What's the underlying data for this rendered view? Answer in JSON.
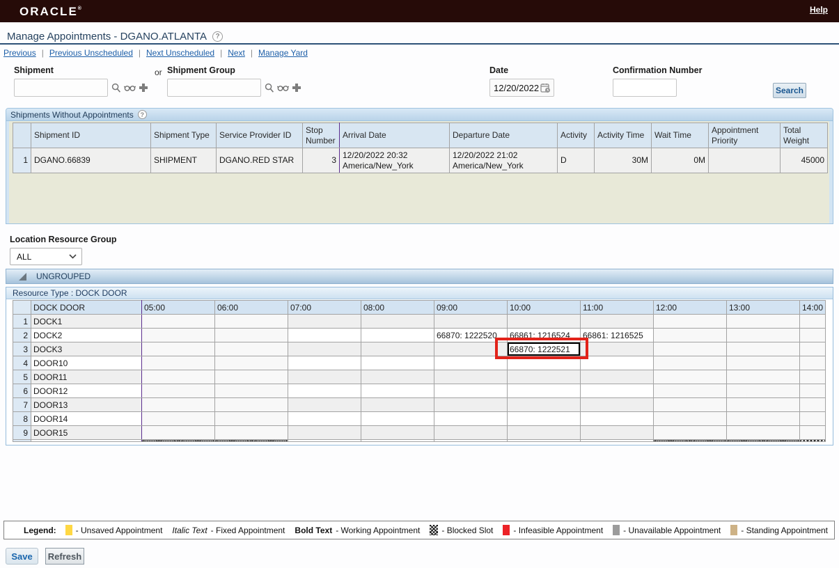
{
  "header": {
    "brand": "ORACLE",
    "brand_mark": "®",
    "help_link": "Help"
  },
  "page": {
    "title": "Manage Appointments - DGANO.ATLANTA"
  },
  "icons": {
    "title_help": "question-circle",
    "lookup": "magnifier",
    "saved_query": "glasses",
    "new_item": "plus",
    "date_picker": "calendar-clock",
    "group_collapse": "triangle",
    "dropdown": "chevron-down"
  },
  "nav": {
    "links": [
      "Previous",
      "Previous Unscheduled",
      "Next Unscheduled",
      "Next",
      "Manage Yard"
    ]
  },
  "search_form": {
    "shipment_label": "Shipment",
    "or_label": "or",
    "shipment_group_label": "Shipment Group",
    "shipment_value": "",
    "shipment_group_value": "",
    "date_label": "Date",
    "date_value": "12/20/2022",
    "confirmation_label": "Confirmation Number",
    "confirmation_value": "",
    "search_button": "Search"
  },
  "shipments_panel": {
    "title": "Shipments Without Appointments",
    "columns": [
      "Shipment ID",
      "Shipment Type",
      "Service Provider ID",
      "Stop Number",
      "Arrival Date",
      "Departure Date",
      "Activity",
      "Activity Time",
      "Wait Time",
      "Appointment Priority",
      "Total Weight"
    ],
    "rows": [
      {
        "row_number": "1",
        "shipment_id": "DGANO.66839",
        "shipment_type": "SHIPMENT",
        "service_provider_id": "DGANO.RED STAR",
        "stop_number": "3",
        "arrival_date": "12/20/2022 20:32\nAmerica/New_York",
        "departure_date": "12/20/2022 21:02\nAmerica/New_York",
        "activity": "D",
        "activity_time": "30M",
        "wait_time": "0M",
        "appointment_priority": "",
        "total_weight": "45000"
      }
    ]
  },
  "resource_group": {
    "label": "Location Resource Group",
    "selected": "ALL",
    "group_header": "UNGROUPED",
    "resource_type_header": "Resource Type : DOCK DOOR"
  },
  "schedule": {
    "door_column_header": "DOCK DOOR",
    "times": [
      "05:00",
      "06:00",
      "07:00",
      "08:00",
      "09:00",
      "10:00",
      "11:00",
      "12:00",
      "13:00",
      "14:00"
    ],
    "blocked_times": [
      "05:00",
      "06:00",
      "12:00",
      "13:00",
      "14:00"
    ],
    "doors": [
      "DOCK1",
      "DOCK2",
      "DOCK3",
      "DOOR10",
      "DOOR11",
      "DOOR12",
      "DOOR13",
      "DOOR14",
      "DOOR15"
    ],
    "appointments": [
      {
        "door": "DOCK2",
        "time": "09:00",
        "label": "66870: 1222520",
        "selected": false,
        "highlighted": false
      },
      {
        "door": "DOCK2",
        "time": "10:00",
        "label": "66861: 1216524",
        "selected": false,
        "highlighted": false
      },
      {
        "door": "DOCK2",
        "time": "11:00",
        "label": "66861: 1216525",
        "selected": false,
        "highlighted": false
      },
      {
        "door": "DOCK3",
        "time": "10:00",
        "label": "66870: 1222521",
        "selected": true,
        "highlighted": true
      }
    ]
  },
  "legend": {
    "title": "Legend:",
    "items": [
      {
        "swatch": "yellow",
        "text": "- Unsaved Appointment"
      },
      {
        "sample": "Italic Text",
        "sample_style": "italic",
        "text": "- Fixed Appointment"
      },
      {
        "sample": "Bold Text",
        "sample_style": "bold",
        "text": "- Working Appointment"
      },
      {
        "swatch": "blocked",
        "text": "- Blocked Slot"
      },
      {
        "swatch": "red",
        "text": "- Infeasible Appointment"
      },
      {
        "swatch": "gray",
        "text": "- Unavailable Appointment"
      },
      {
        "swatch": "tan",
        "text": "- Standing Appointment"
      }
    ]
  },
  "footer": {
    "save_button": "Save",
    "refresh_button": "Refresh"
  },
  "colors": {
    "topbar": "#260b08",
    "link_blue": "#1d5fa8",
    "panel_header_blue": "#b9d3e9",
    "empty_table_beige": "#e8e9d8",
    "blocked_slot_border": "#5b2d8e",
    "selection_border": "#000000",
    "annotation_red": "#e2231a",
    "legend_unsaved": "#ffd843",
    "legend_infeasible": "#ec2227",
    "legend_unavailable": "#9b9b9b",
    "legend_standing": "#cdb286"
  }
}
